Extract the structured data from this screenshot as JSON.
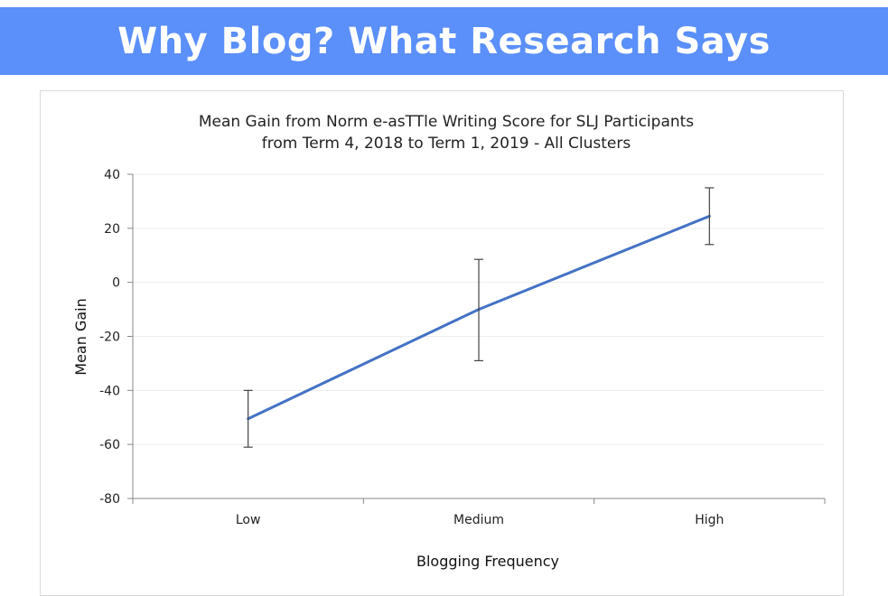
{
  "slide": {
    "heading": "Why Blog? What Research Says"
  },
  "chart_data": {
    "type": "line",
    "title_lines": [
      "Mean Gain from Norm e-asTTle Writing Score for SLJ Participants",
      "from Term 4, 2018 to Term 1, 2019 - All Clusters"
    ],
    "xlabel": "Blogging Frequency",
    "ylabel": "Mean Gain",
    "categories": [
      "Low",
      "Medium",
      "High"
    ],
    "ylim": [
      -80,
      40
    ],
    "yticks": [
      40,
      20,
      0,
      -20,
      -40,
      -60,
      -80
    ],
    "grid": true,
    "series": [
      {
        "values": [
          -50.5,
          -10,
          24.5
        ],
        "error_low": [
          -61,
          -29,
          14
        ],
        "error_high": [
          -40,
          8.5,
          35
        ],
        "color": "#4472c4"
      }
    ]
  }
}
